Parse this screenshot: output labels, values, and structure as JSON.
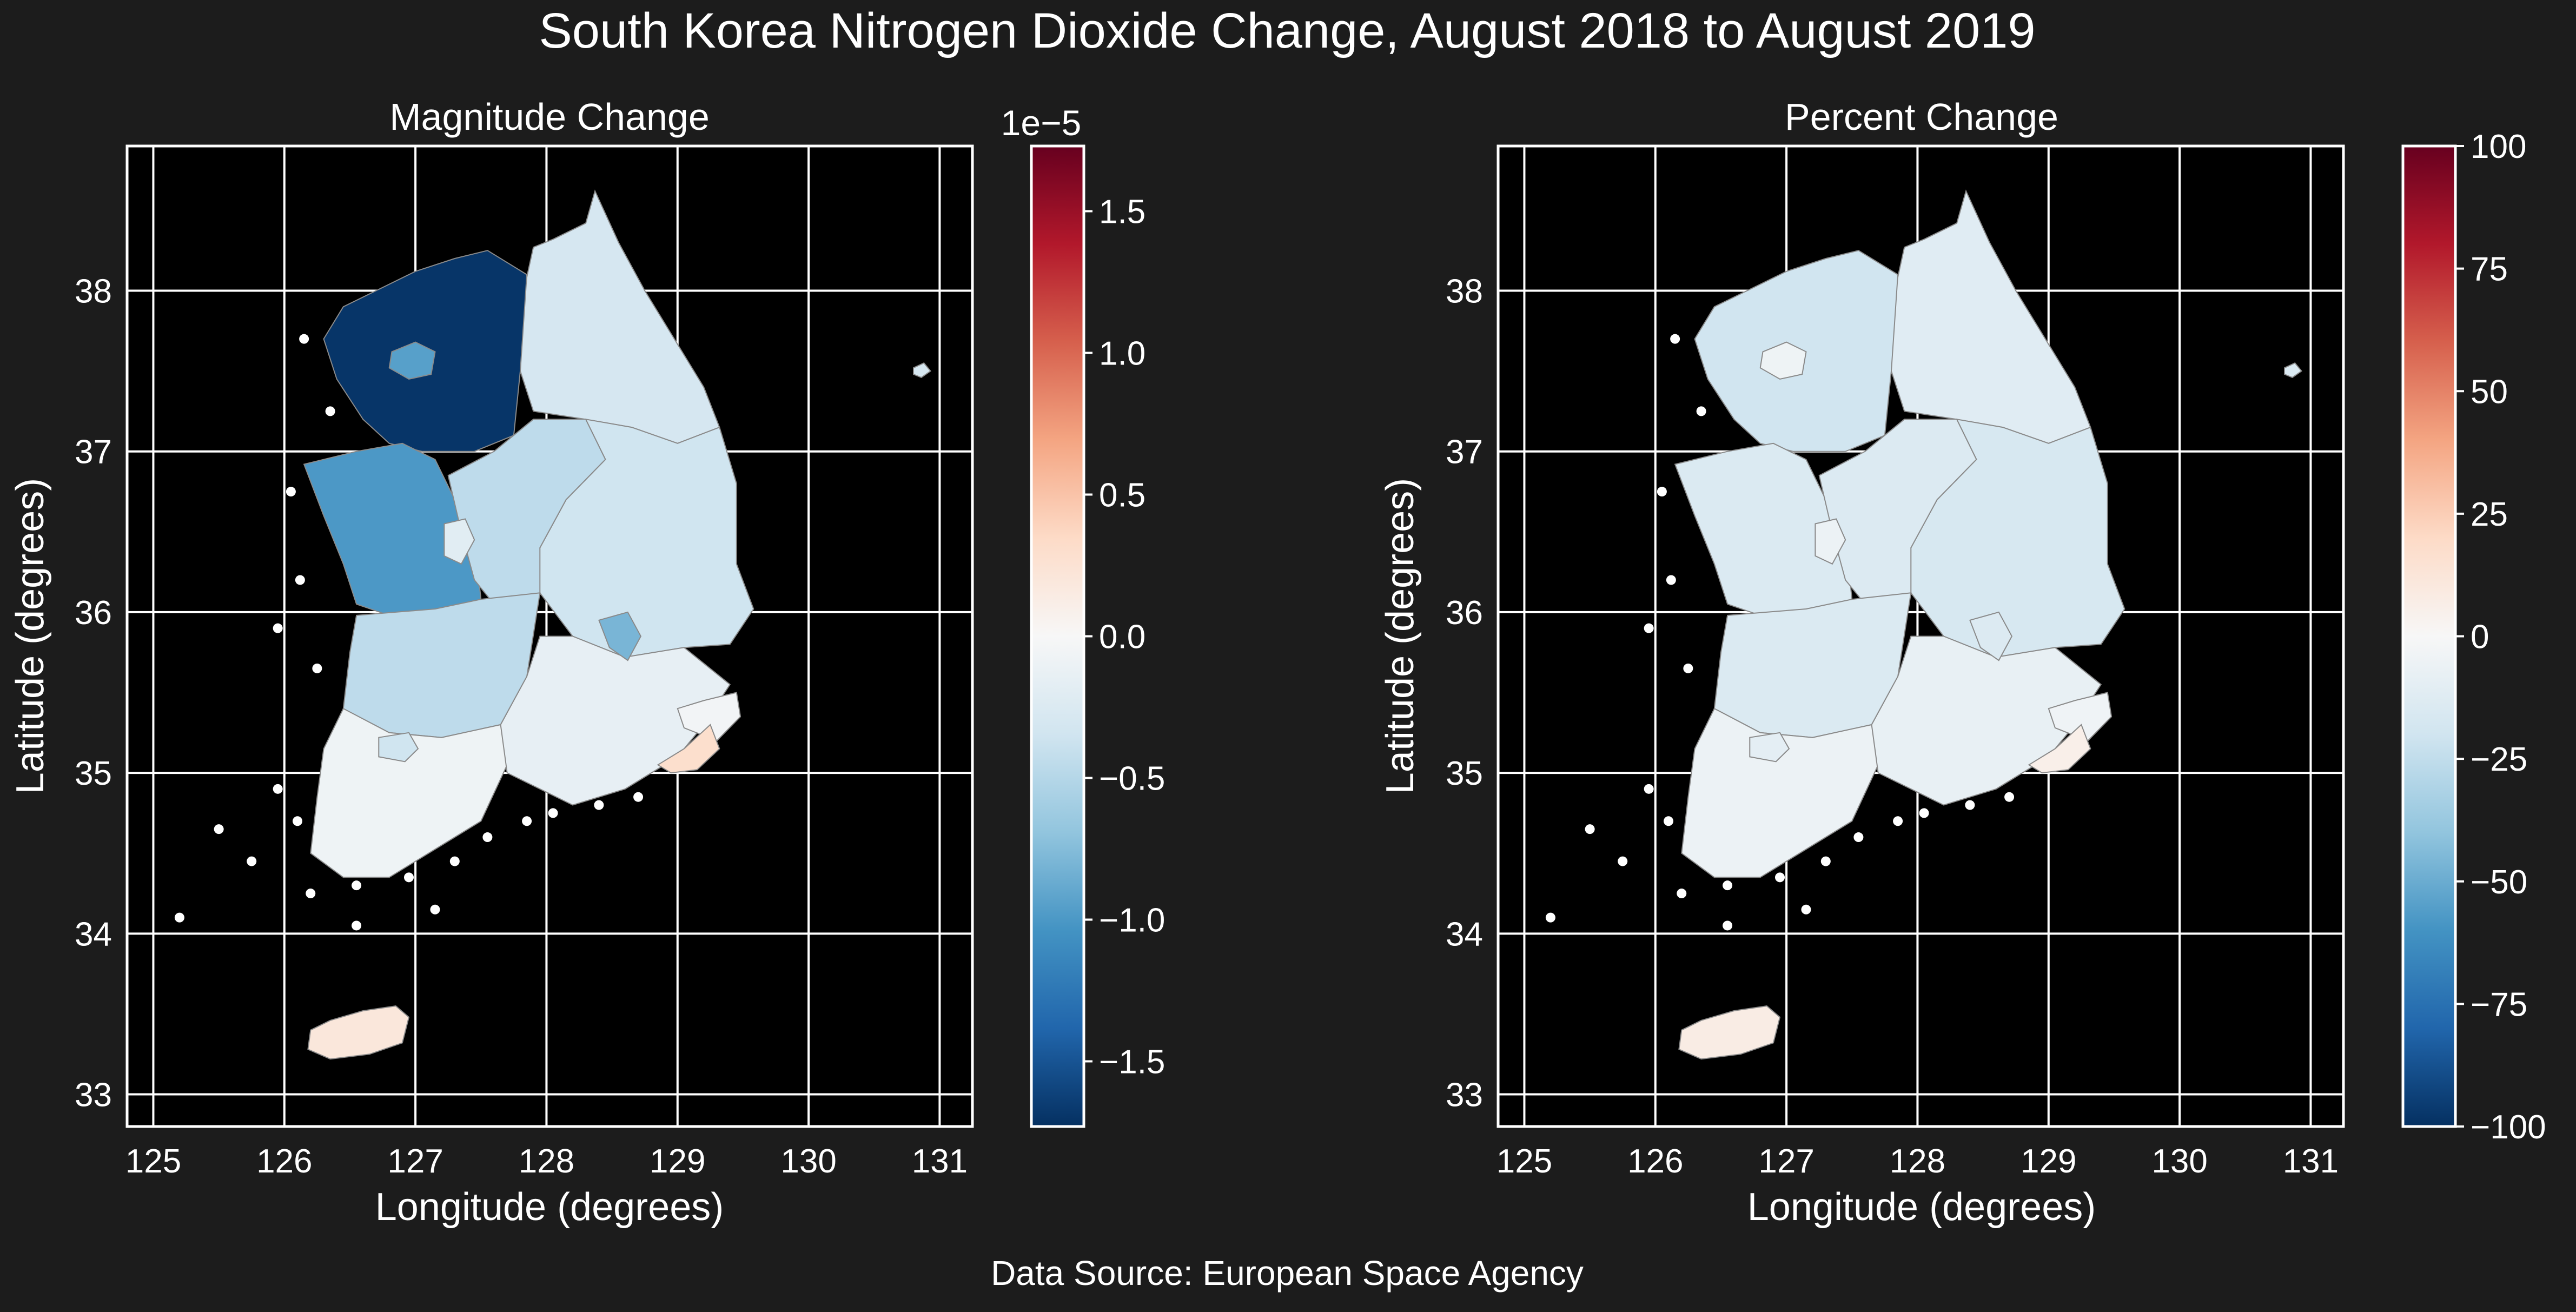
{
  "figure": {
    "title": "South Korea Nitrogen Dioxide Change, August 2018 to August 2019",
    "source": "Data Source: European Space Agency",
    "background": "#1c1c1c",
    "map_background": "#000000"
  },
  "chart_data": [
    {
      "type": "choropleth",
      "title": "Magnitude Change",
      "xlabel": "Longitude (degrees)",
      "ylabel": "Latitude (degrees)",
      "xlim": [
        124.8,
        131.25
      ],
      "ylim": [
        32.8,
        38.9
      ],
      "xticks": [
        "125",
        "126",
        "127",
        "128",
        "129",
        "130",
        "131"
      ],
      "yticks": [
        "33",
        "34",
        "35",
        "36",
        "37",
        "38"
      ],
      "colorbar": {
        "min": -1.73e-05,
        "max": 1.73e-05,
        "offset_label": "1e−5",
        "ticks": [
          {
            "value": -1.5,
            "label": "−1.5"
          },
          {
            "value": -1.0,
            "label": "−1.0"
          },
          {
            "value": -0.5,
            "label": "−0.5"
          },
          {
            "value": 0.0,
            "label": "0.0"
          },
          {
            "value": 0.5,
            "label": "0.5"
          },
          {
            "value": 1.0,
            "label": "1.0"
          },
          {
            "value": 1.5,
            "label": "1.5"
          }
        ],
        "cmap": "RdBu_r"
      },
      "regions": [
        {
          "region": "northeast",
          "value": -3e-06
        },
        {
          "region": "metro-northwest",
          "value": -1.7e-05
        },
        {
          "region": "metro-enclave",
          "value": -9.5e-06
        },
        {
          "region": "central-west",
          "value": -1e-05
        },
        {
          "region": "central-mid",
          "value": -4.5e-06
        },
        {
          "region": "central-east",
          "value": -3.5e-06
        },
        {
          "region": "central-city",
          "value": -2e-06
        },
        {
          "region": "southwest-mid",
          "value": -4.5e-06
        },
        {
          "region": "southwest",
          "value": -8e-07
        },
        {
          "region": "southwest-city",
          "value": -3.5e-06
        },
        {
          "region": "southeast",
          "value": -1.5e-06
        },
        {
          "region": "southeast-city",
          "value": -8e-06
        },
        {
          "region": "east-coast",
          "value": -5e-07
        },
        {
          "region": "southeast-port",
          "value": 3e-06
        },
        {
          "region": "jeju",
          "value": 2e-06
        },
        {
          "region": "ulleung",
          "value": -3e-06
        }
      ]
    },
    {
      "type": "choropleth",
      "title": "Percent Change",
      "xlabel": "Longitude (degrees)",
      "ylabel": "Latitude (degrees)",
      "xlim": [
        124.8,
        131.25
      ],
      "ylim": [
        32.8,
        38.9
      ],
      "xticks": [
        "125",
        "126",
        "127",
        "128",
        "129",
        "130",
        "131"
      ],
      "yticks": [
        "33",
        "34",
        "35",
        "36",
        "37",
        "38"
      ],
      "colorbar": {
        "min": -100,
        "max": 100,
        "offset_label": "",
        "ticks": [
          {
            "value": -100,
            "label": "−100"
          },
          {
            "value": -75,
            "label": "−75"
          },
          {
            "value": -50,
            "label": "−50"
          },
          {
            "value": -25,
            "label": "−25"
          },
          {
            "value": 0,
            "label": "0"
          },
          {
            "value": 25,
            "label": "25"
          },
          {
            "value": 50,
            "label": "50"
          },
          {
            "value": 75,
            "label": "75"
          },
          {
            "value": 100,
            "label": "100"
          }
        ],
        "cmap": "RdBu_r"
      },
      "regions": [
        {
          "region": "northeast",
          "value": -12
        },
        {
          "region": "metro-northwest",
          "value": -20
        },
        {
          "region": "metro-enclave",
          "value": -5
        },
        {
          "region": "central-west",
          "value": -15
        },
        {
          "region": "central-mid",
          "value": -14
        },
        {
          "region": "central-east",
          "value": -17
        },
        {
          "region": "central-city",
          "value": -6
        },
        {
          "region": "southwest-mid",
          "value": -15
        },
        {
          "region": "southwest",
          "value": -6
        },
        {
          "region": "southwest-city",
          "value": -10
        },
        {
          "region": "southeast",
          "value": -8
        },
        {
          "region": "southeast-city",
          "value": -14
        },
        {
          "region": "east-coast",
          "value": -4
        },
        {
          "region": "southeast-port",
          "value": 6
        },
        {
          "region": "jeju",
          "value": 8
        },
        {
          "region": "ulleung",
          "value": -15
        }
      ]
    }
  ]
}
